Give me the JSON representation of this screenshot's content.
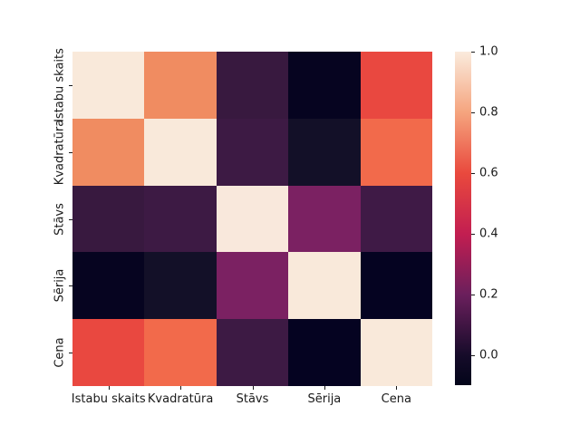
{
  "chart_data": {
    "type": "heatmap",
    "title": "",
    "colormap": "rocket",
    "categories": [
      "Istabu skaits",
      "Kvadratūra",
      "Stāvs",
      "Sērija",
      "Cena"
    ],
    "x_tick_labels": [
      "Istabu skaits",
      "Kvadratūra",
      "Stāvs",
      "Sērija",
      "Cena"
    ],
    "y_tick_labels": [
      "Istabu skaits",
      "Kvadratūra",
      "Stāvs",
      "Sērija",
      "Cena"
    ],
    "matrix": [
      [
        1.0,
        0.73,
        0.1,
        -0.07,
        0.58
      ],
      [
        0.73,
        1.0,
        0.12,
        0.01,
        0.66
      ],
      [
        0.1,
        0.12,
        1.0,
        0.24,
        0.13
      ],
      [
        -0.07,
        0.01,
        0.24,
        1.0,
        -0.1
      ],
      [
        0.58,
        0.66,
        0.13,
        -0.1,
        1.0
      ]
    ],
    "cell_colors": [
      [
        "#f9e9da",
        "#f08c61",
        "#38193f",
        "#060420",
        "#e94840"
      ],
      [
        "#f08c61",
        "#f9e9da",
        "#3d1a44",
        "#131028",
        "#f26a4b"
      ],
      [
        "#38193f",
        "#3d1a44",
        "#f9e8dc",
        "#7b2162",
        "#3f1a46"
      ],
      [
        "#060420",
        "#131028",
        "#7b2162",
        "#f9e9da",
        "#050321"
      ],
      [
        "#e94840",
        "#f26a4b",
        "#3d1a44",
        "#050321",
        "#f9e9da"
      ]
    ],
    "colorbar": {
      "tick_labels": [
        "1.0",
        "0.8",
        "0.6",
        "0.4",
        "0.2",
        "0.0"
      ],
      "tick_values": [
        1.0,
        0.8,
        0.6,
        0.4,
        0.2,
        0.0
      ],
      "vmin": -0.098,
      "vmax": 1.0,
      "gradient_stops": [
        {
          "pos": 0.0,
          "color": "#faebdd"
        },
        {
          "pos": 18.3,
          "color": "#f5a47e"
        },
        {
          "pos": 36.5,
          "color": "#e9493d"
        },
        {
          "pos": 54.8,
          "color": "#c21e51"
        },
        {
          "pos": 73.0,
          "color": "#6a1f5c"
        },
        {
          "pos": 91.3,
          "color": "#150b29"
        },
        {
          "pos": 100.0,
          "color": "#03051a"
        }
      ]
    },
    "layout": {
      "grid_lines": false,
      "legend": "colorbar-right",
      "background": "#ffffff"
    }
  }
}
